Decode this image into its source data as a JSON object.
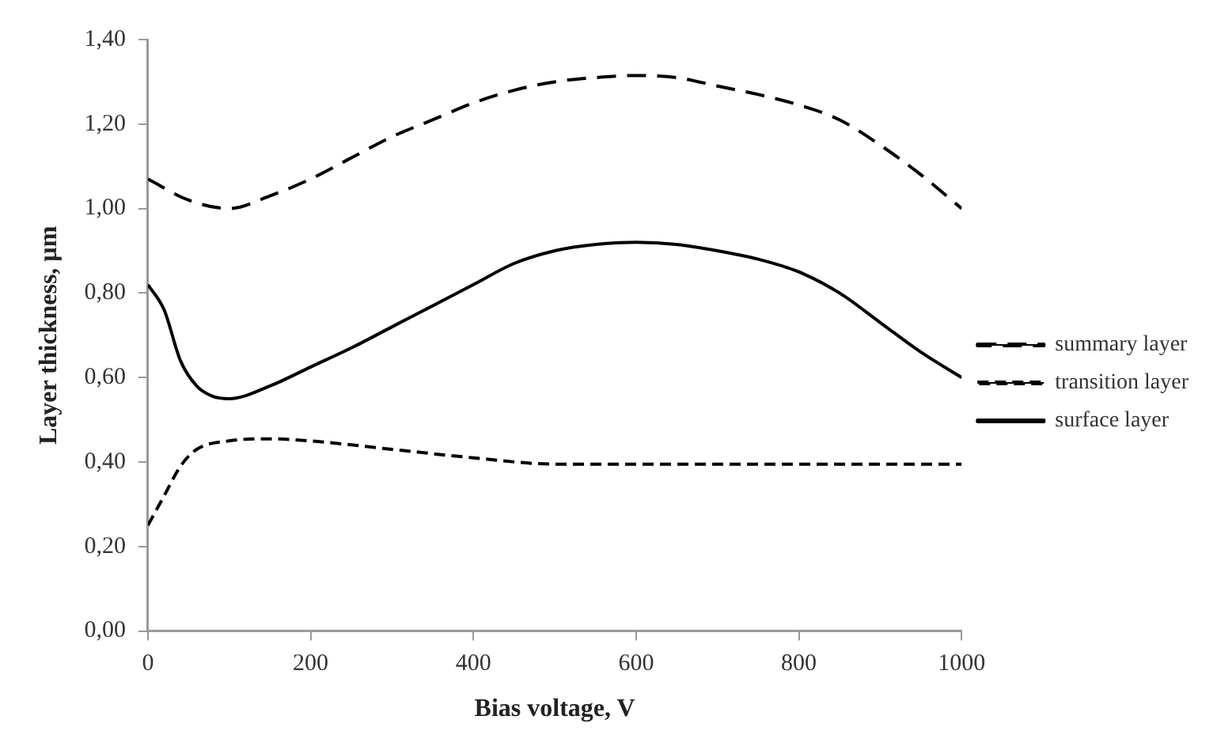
{
  "chart_data": {
    "type": "line",
    "xlabel": "Bias voltage, V",
    "ylabel": "Layer thickness, µm",
    "xlim": [
      0,
      1000
    ],
    "xticks": [
      0,
      200,
      400,
      600,
      800,
      1000
    ],
    "ylim": [
      0,
      1.4
    ],
    "yticks": [
      {
        "value": 0,
        "label": "0,00"
      },
      {
        "value": 0.2,
        "label": "0,20"
      },
      {
        "value": 0.4,
        "label": "0,40"
      },
      {
        "value": 0.6,
        "label": "0,60"
      },
      {
        "value": 0.8,
        "label": "0,80"
      },
      {
        "value": 1,
        "label": "1,00"
      },
      {
        "value": 1.2,
        "label": "1,20"
      },
      {
        "value": 1.4,
        "label": "1,40"
      }
    ],
    "grid": false,
    "legend": "right",
    "marker": "none",
    "series": [
      {
        "name": "summary layer",
        "color": "#000000",
        "line_style": "dashed",
        "x": [
          0,
          50,
          100,
          150,
          200,
          250,
          300,
          350,
          400,
          450,
          500,
          550,
          600,
          650,
          700,
          750,
          800,
          850,
          900,
          950,
          1000
        ],
        "values": [
          1.07,
          1.02,
          1.0,
          1.03,
          1.07,
          1.12,
          1.17,
          1.21,
          1.25,
          1.28,
          1.3,
          1.31,
          1.315,
          1.31,
          1.29,
          1.27,
          1.245,
          1.21,
          1.15,
          1.08,
          1.0
        ]
      },
      {
        "name": "transition layer",
        "color": "#000000",
        "line_style": "dashed",
        "x": [
          0,
          20,
          40,
          60,
          100,
          150,
          200,
          300,
          400,
          500,
          600,
          700,
          800,
          900,
          1000
        ],
        "values": [
          0.25,
          0.32,
          0.39,
          0.43,
          0.45,
          0.455,
          0.45,
          0.43,
          0.41,
          0.395,
          0.395,
          0.395,
          0.395,
          0.395,
          0.395
        ]
      },
      {
        "name": "surface layer",
        "color": "#000000",
        "line_style": "solid",
        "x": [
          0,
          20,
          40,
          60,
          80,
          100,
          150,
          200,
          250,
          300,
          350,
          400,
          450,
          500,
          550,
          600,
          650,
          700,
          750,
          800,
          850,
          900,
          950,
          1000
        ],
        "values": [
          0.82,
          0.76,
          0.64,
          0.58,
          0.555,
          0.55,
          0.58,
          0.625,
          0.67,
          0.72,
          0.77,
          0.82,
          0.87,
          0.9,
          0.915,
          0.92,
          0.915,
          0.9,
          0.88,
          0.85,
          0.8,
          0.73,
          0.66,
          0.6
        ]
      }
    ]
  }
}
